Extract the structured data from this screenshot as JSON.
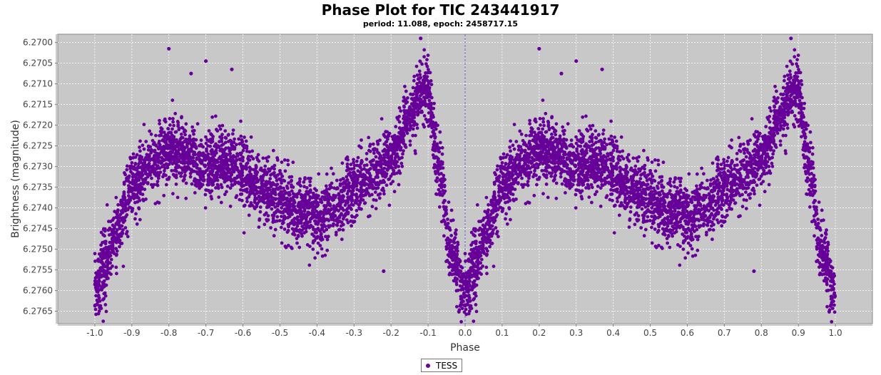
{
  "title": "Phase Plot for TIC 243441917",
  "subtitle": "period: 11.088, epoch: 2458717.15",
  "chart_data": {
    "type": "scatter",
    "xlabel": "Phase",
    "ylabel": "Brightness (magnitude)",
    "xlim": [
      -1.1,
      1.1
    ],
    "ylim": [
      6.2698,
      6.2768
    ],
    "y_inverted": true,
    "x_ticks": [
      "-1.0",
      "-0.9",
      "-0.8",
      "-0.7",
      "-0.6",
      "-0.5",
      "-0.4",
      "-0.3",
      "-0.2",
      "-0.1",
      "0.0",
      "0.1",
      "0.2",
      "0.3",
      "0.4",
      "0.5",
      "0.6",
      "0.7",
      "0.8",
      "0.9",
      "1.0"
    ],
    "y_ticks": [
      "6.2700",
      "6.2705",
      "6.2710",
      "6.2715",
      "6.2720",
      "6.2725",
      "6.2730",
      "6.2735",
      "6.2740",
      "6.2745",
      "6.2750",
      "6.2755",
      "6.2760",
      "6.2765"
    ],
    "grid": true,
    "background": "#c8c8c8",
    "zero_line": true,
    "legend_position": "bottom-center",
    "series": [
      {
        "name": "TESS",
        "color": "#660099",
        "trend_x": [
          0.0,
          0.02,
          0.05,
          0.1,
          0.15,
          0.2,
          0.25,
          0.3,
          0.35,
          0.4,
          0.45,
          0.5,
          0.55,
          0.6,
          0.65,
          0.7,
          0.75,
          0.8,
          0.85,
          0.88,
          0.9,
          0.93,
          0.96,
          1.0
        ],
        "trend_y": [
          6.2761,
          6.2755,
          6.2747,
          6.2735,
          6.2729,
          6.2726,
          6.2727,
          6.273,
          6.2729,
          6.2731,
          6.2735,
          6.2738,
          6.274,
          6.2742,
          6.274,
          6.2735,
          6.2732,
          6.2728,
          6.2718,
          6.2712,
          6.2713,
          6.273,
          6.275,
          6.2761
        ],
        "scatter_sigma": 0.00035,
        "point_count_per_cycle": 3500,
        "outliers": [
          {
            "x": -0.8,
            "y": 6.27015
          },
          {
            "x": -0.74,
            "y": 6.27075
          },
          {
            "x": -0.7,
            "y": 6.27045
          },
          {
            "x": -0.63,
            "y": 6.27065
          },
          {
            "x": -0.12,
            "y": 6.2699
          },
          {
            "x": -0.22,
            "y": 6.27553
          },
          {
            "x": 0.2,
            "y": 6.27015
          },
          {
            "x": 0.26,
            "y": 6.27075
          },
          {
            "x": 0.3,
            "y": 6.27045
          },
          {
            "x": 0.37,
            "y": 6.27065
          },
          {
            "x": 0.88,
            "y": 6.2699
          },
          {
            "x": 0.78,
            "y": 6.27553
          }
        ]
      }
    ]
  },
  "legend": {
    "label": "TESS"
  }
}
